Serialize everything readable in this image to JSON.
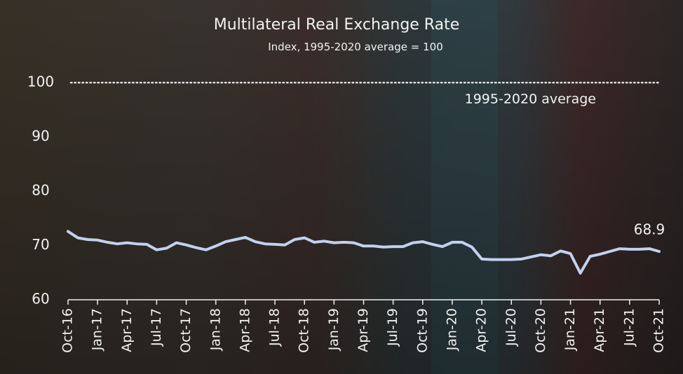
{
  "chart_data": {
    "type": "line",
    "title": "Multilateral Real Exchange Rate",
    "subtitle": "Index, 1995-2020 average = 100",
    "categories": [
      "Oct-16",
      null,
      null,
      "Jan-17",
      null,
      null,
      "Apr-17",
      null,
      null,
      "Jul-17",
      null,
      null,
      "Oct-17",
      null,
      null,
      "Jan-18",
      null,
      null,
      "Apr-18",
      null,
      null,
      "Jul-18",
      null,
      null,
      "Oct-18",
      null,
      null,
      "Jan-19",
      null,
      null,
      "Apr-19",
      null,
      null,
      "Jul-19",
      null,
      null,
      "Oct-19",
      null,
      null,
      "Jan-20",
      null,
      null,
      "Apr-20",
      null,
      null,
      "Jul-20",
      null,
      null,
      "Oct-20",
      null,
      null,
      "Jan-21",
      null,
      null,
      "Apr-21",
      null,
      null,
      "Jul-21",
      null,
      null,
      "Oct-21"
    ],
    "values": [
      72.6,
      71.4,
      71.1,
      71.0,
      70.6,
      70.3,
      70.5,
      70.3,
      70.2,
      69.2,
      69.5,
      70.5,
      70.1,
      69.6,
      69.2,
      69.9,
      70.7,
      71.1,
      71.5,
      70.7,
      70.3,
      70.2,
      70.1,
      71.1,
      71.4,
      70.6,
      70.8,
      70.5,
      70.6,
      70.5,
      69.9,
      69.9,
      69.7,
      69.8,
      69.8,
      70.5,
      70.7,
      70.2,
      69.8,
      70.6,
      70.6,
      69.7,
      67.5,
      67.4,
      67.4,
      67.4,
      67.5,
      67.9,
      68.3,
      68.1,
      69.0,
      68.5,
      64.9,
      68.0,
      68.4,
      68.9,
      69.4,
      69.3,
      69.3,
      69.4,
      68.9
    ],
    "color": "#c3d1ef",
    "ylim": [
      60,
      100
    ],
    "yticks": [
      60,
      70,
      80,
      90,
      100
    ],
    "reference_line": {
      "value": 100,
      "label": "1995-2020 average"
    },
    "grid": false
  }
}
